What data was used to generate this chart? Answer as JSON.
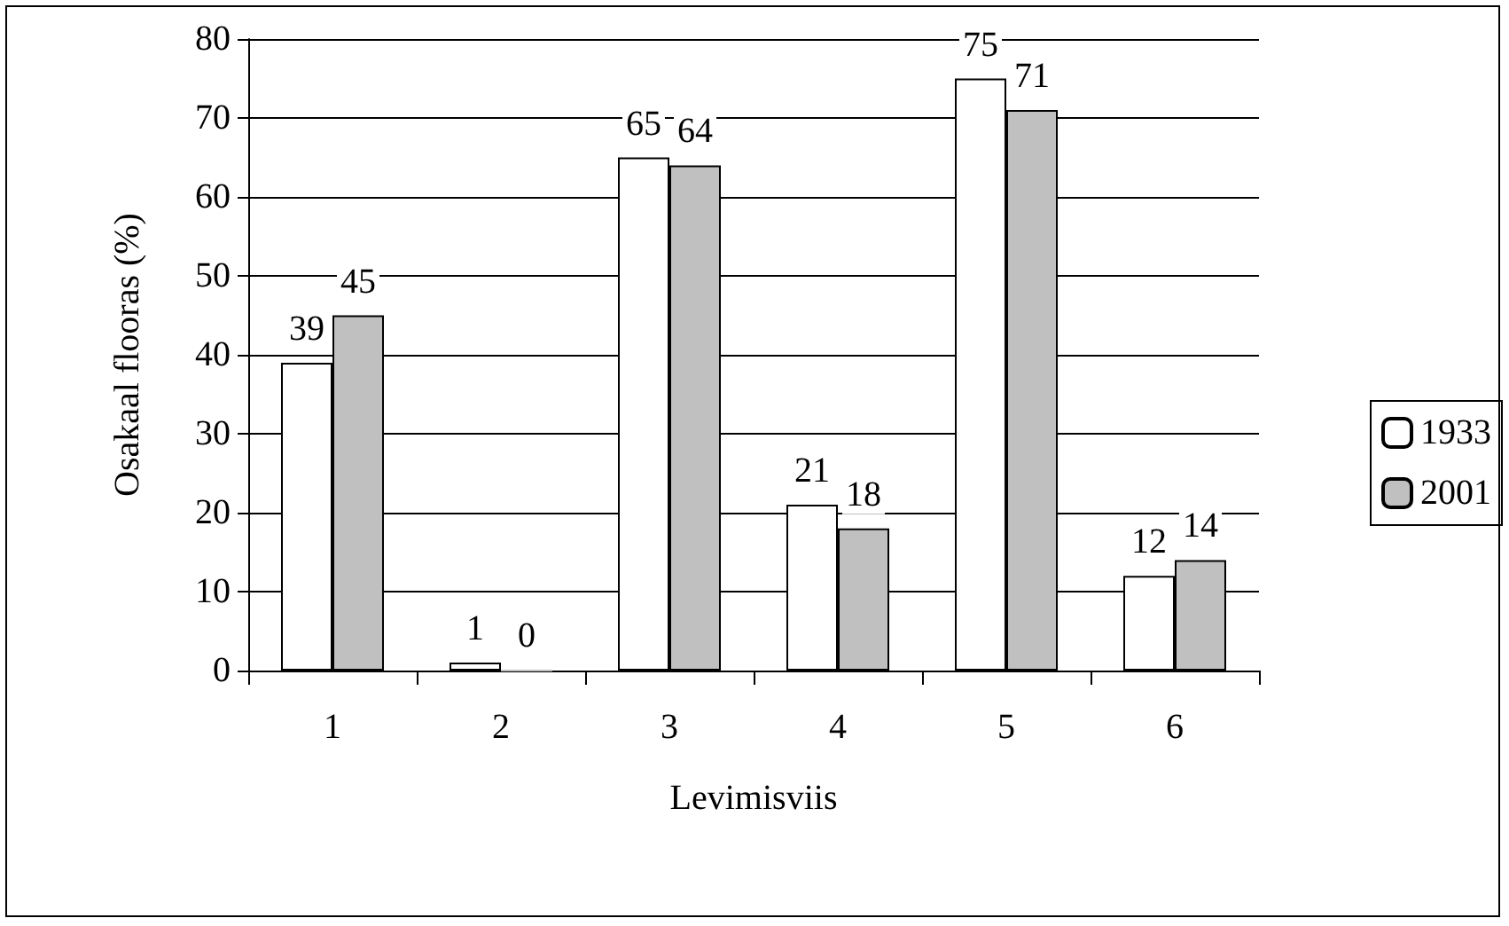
{
  "chart_data": {
    "type": "bar",
    "xlabel": "Levimisviis",
    "ylabel": "Osakaal flooras (%)",
    "categories": [
      "1",
      "2",
      "3",
      "4",
      "5",
      "6"
    ],
    "series": [
      {
        "name": "1933",
        "color": "#ffffff",
        "values": [
          39,
          1,
          65,
          21,
          75,
          12
        ]
      },
      {
        "name": "2001",
        "color": "#c0c0c0",
        "values": [
          45,
          0,
          64,
          18,
          71,
          14
        ]
      }
    ],
    "ylim": [
      0,
      80
    ],
    "yticks": [
      0,
      10,
      20,
      30,
      40,
      50,
      60,
      70,
      80
    ],
    "grid": "y",
    "legend": "right",
    "data_labels": true
  }
}
